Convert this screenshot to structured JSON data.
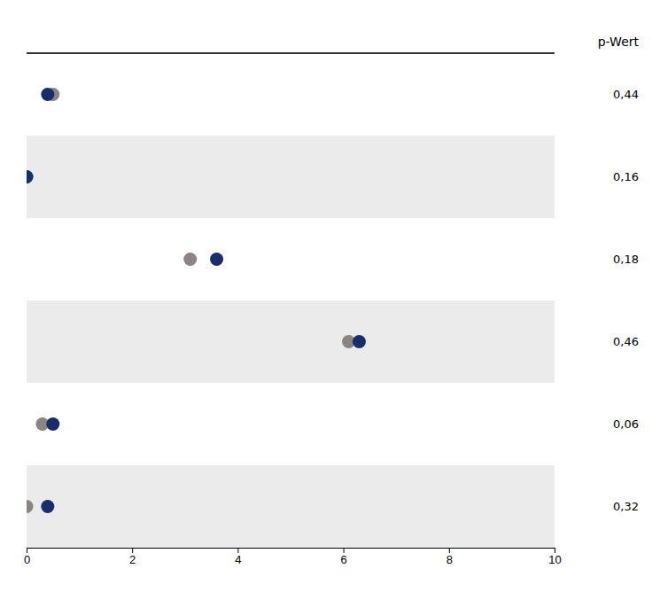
{
  "chart_data": {
    "type": "dot",
    "orientation": "horizontal",
    "categories": [
      null,
      null,
      null,
      null,
      null,
      null
    ],
    "series": [
      {
        "color": "#8b8480",
        "values": [
          0.5,
          0.0,
          3.1,
          6.1,
          0.3,
          0.0
        ]
      },
      {
        "color": "#1a2d6b",
        "values": [
          0.4,
          0.0,
          3.6,
          6.3,
          0.5,
          0.4
        ]
      }
    ],
    "annotations": {
      "header": "p-Wert",
      "texts": [
        "0,44",
        "0,16",
        "0,18",
        "0,46",
        "0,06",
        "0,32"
      ]
    },
    "xlim": [
      0,
      10
    ],
    "xticks": [
      0,
      2,
      4,
      6,
      8,
      10
    ],
    "grid": false
  }
}
